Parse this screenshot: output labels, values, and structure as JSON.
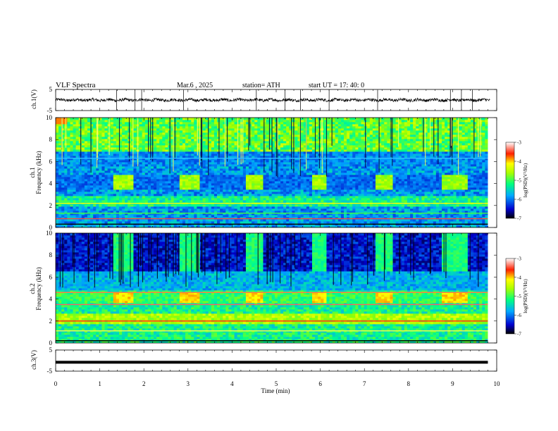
{
  "header": {
    "title": "VLF Spectra",
    "date": "Mar.6 , 2025",
    "station": "station= ATH",
    "start_ut": "start UT = 17: 40: 0"
  },
  "chart_data": [
    {
      "type": "line",
      "name": "ch1-waveform",
      "ylabel": "ch.1(V)",
      "ylim": [
        -5,
        5
      ],
      "yticks": [
        5,
        -5
      ],
      "xlim": [
        0,
        10
      ],
      "baseline": 0,
      "spike_times": [
        1.38,
        1.8,
        1.95,
        2.9,
        4.55,
        5.2,
        5.55,
        6.2,
        7.3,
        8.95,
        9.2,
        9.45
      ]
    },
    {
      "type": "heatmap",
      "name": "ch1-spectrogram",
      "ylabel": "ch.1\nFrequency (kHz)",
      "ylim": [
        0,
        10
      ],
      "yticks": [
        0,
        2,
        4,
        6,
        8,
        10
      ],
      "xlim": [
        0,
        10
      ],
      "bursts": [
        [
          1.25,
          1.7
        ],
        [
          2.75,
          3.25
        ],
        [
          4.25,
          4.65
        ],
        [
          5.75,
          6.1
        ],
        [
          7.25,
          7.6
        ],
        [
          8.75,
          9.3
        ]
      ],
      "colorbar": {
        "label": "log(PSD)(V²/Hz)",
        "min": -7,
        "max": -3,
        "ticks": [
          -3,
          -4,
          -5,
          -6,
          -7
        ]
      }
    },
    {
      "type": "heatmap",
      "name": "ch2-spectrogram",
      "ylabel": "ch.2\nFrequency (kHz)",
      "ylim": [
        0,
        10
      ],
      "yticks": [
        0,
        2,
        4,
        6,
        8,
        10
      ],
      "xlim": [
        0,
        10
      ],
      "bursts": [
        [
          1.25,
          1.7
        ],
        [
          2.75,
          3.25
        ],
        [
          4.25,
          4.65
        ],
        [
          5.75,
          6.1
        ],
        [
          7.25,
          7.6
        ],
        [
          8.75,
          9.3
        ]
      ],
      "colorbar": {
        "label": "log(PSD)(V²/Hz)",
        "min": -7,
        "max": -3,
        "ticks": [
          -3,
          -4,
          -5,
          -6,
          -7
        ]
      }
    },
    {
      "type": "line",
      "name": "ch3-waveform",
      "ylabel": "ch.3(V)",
      "ylim": [
        -5,
        5
      ],
      "yticks": [
        5,
        -5
      ],
      "xlim": [
        0,
        10
      ],
      "baseline": -0.8
    }
  ],
  "xaxis": {
    "label": "Time (min)",
    "ticks": [
      0,
      1,
      2,
      3,
      4,
      5,
      6,
      7,
      8,
      9,
      10
    ]
  },
  "colors": {
    "jet": [
      "#00008f",
      "#0000ff",
      "#00ffff",
      "#00ff00",
      "#ffff00",
      "#ff0000",
      "#ffffff"
    ]
  }
}
